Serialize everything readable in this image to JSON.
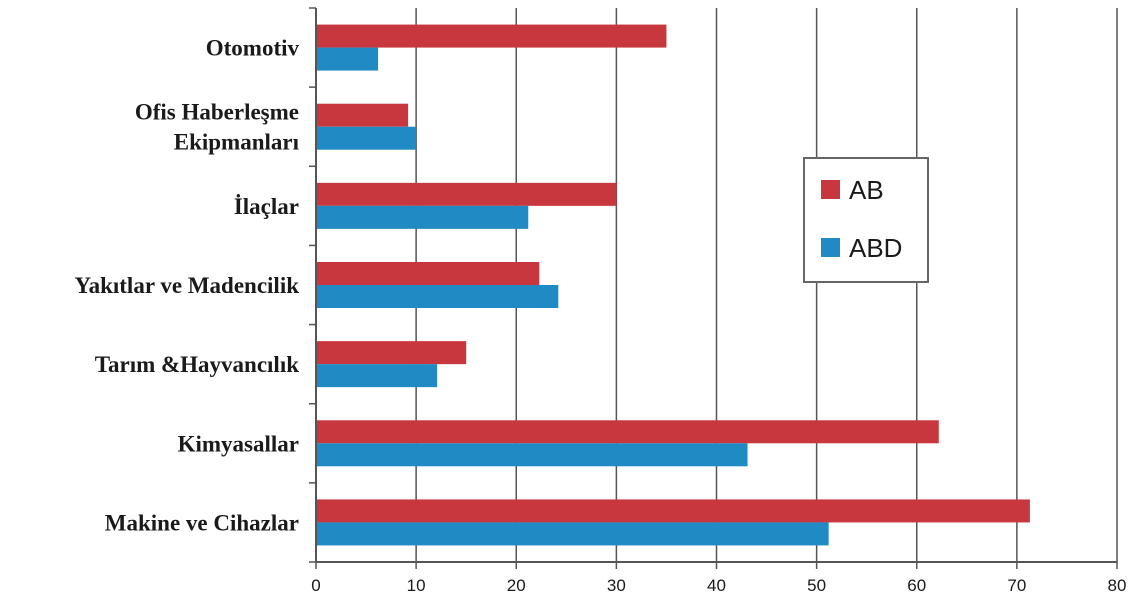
{
  "chart_data": {
    "type": "bar",
    "orientation": "horizontal",
    "categories": [
      [
        "Otomotiv"
      ],
      [
        "Ofis Haberleşme",
        "Ekipmanları"
      ],
      [
        "İlaçlar"
      ],
      [
        "Yakıtlar ve Madencilik"
      ],
      [
        "Tarım &Hayvancılık"
      ],
      [
        "Kimyasallar"
      ],
      [
        "Makine ve Cihazlar"
      ]
    ],
    "series": [
      {
        "name": "AB",
        "color": "#c8373d",
        "values": [
          35,
          9.2,
          30,
          22.3,
          15,
          62.2,
          71.3
        ]
      },
      {
        "name": "ABD",
        "color": "#1f8ac4",
        "values": [
          6.2,
          10,
          21.2,
          24.2,
          12.1,
          43.1,
          51.2
        ]
      }
    ],
    "xlim": [
      0,
      80
    ],
    "xticks": [
      0,
      10,
      20,
      30,
      40,
      50,
      60,
      70,
      80
    ],
    "grid": true,
    "legend": "right",
    "title": "",
    "xlabel": "",
    "ylabel": ""
  }
}
